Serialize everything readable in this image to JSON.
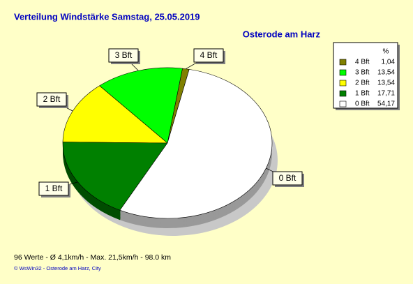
{
  "chart_data": {
    "type": "pie",
    "title": "Verteilung Windstärke  Samstag, 25.05.2019",
    "subtitle": "Osterode am Harz",
    "legend_title": "%",
    "categories": [
      "4 Bft",
      "3 Bft",
      "2 Bft",
      "1 Bft",
      "0 Bft"
    ],
    "values": [
      1.04,
      13.54,
      13.54,
      17.71,
      54.17
    ],
    "value_labels": [
      "1,04",
      "13,54",
      "13,54",
      "17,71",
      "54,17"
    ],
    "colors": [
      "#808000",
      "#00ff00",
      "#ffff00",
      "#008000",
      "#ffffff"
    ],
    "legend": "upper right",
    "footer": "96 Werte   -   Ø 4,1km/h  -  Max. 21,5km/h   -   98.0 km",
    "credit": "© WsWin32   -   Osterode am Harz, City"
  }
}
